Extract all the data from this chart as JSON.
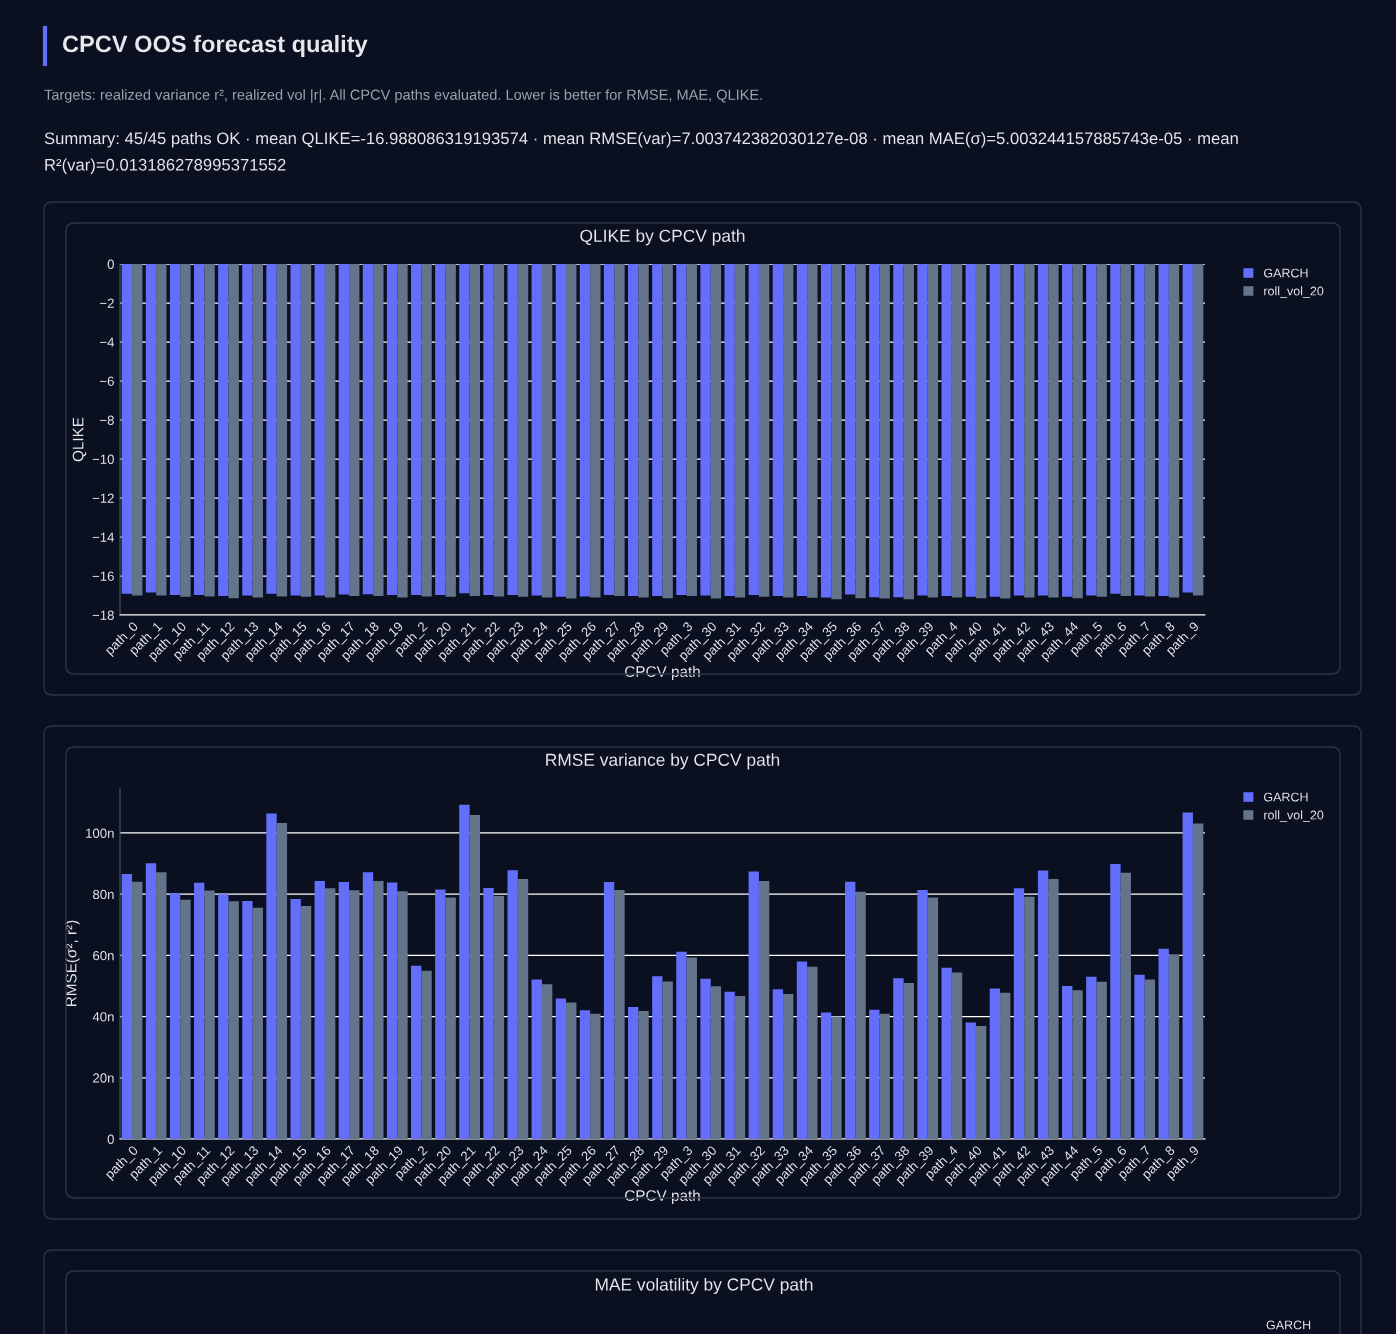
{
  "chart_data": [
    {
      "type": "other",
      "title": "CPCV OOS forecast quality",
      "annotations": [
        "Targets: realized variance r², realized vol |r|. All CPCV paths evaluated. Lower is better for RMSE, MAE, QLIKE.",
        "Summary: 45/45 paths OK · mean QLIKE=-16.988086319193574 · mean RMSE(var)=7.003742382030127e-08 · mean MAE(σ)=5.003244157885743e-05 · mean R²(var)=0.013186278995371552"
      ]
    },
    {
      "type": "bar",
      "title": "QLIKE by CPCV path",
      "xlabel": "CPCV path",
      "ylabel": "QLIKE",
      "grid": "y",
      "legend": "top right",
      "categories": [
        "path_0",
        "path_1",
        "path_10",
        "path_11",
        "path_12",
        "path_13",
        "path_14",
        "path_15",
        "path_16",
        "path_17",
        "path_18",
        "path_19",
        "path_2",
        "path_20",
        "path_21",
        "path_22",
        "path_23",
        "path_24",
        "path_25",
        "path_26",
        "path_27",
        "path_28",
        "path_29",
        "path_3",
        "path_30",
        "path_31",
        "path_32",
        "path_33",
        "path_34",
        "path_35",
        "path_36",
        "path_37",
        "path_38",
        "path_39",
        "path_4",
        "path_40",
        "path_41",
        "path_42",
        "path_43",
        "path_44",
        "path_5",
        "path_6",
        "path_7",
        "path_8",
        "path_9"
      ],
      "ylim": [
        -18,
        0
      ],
      "yticks": [
        0,
        {
          "value": -2,
          "label": "−2"
        },
        {
          "value": -4,
          "label": "−4"
        },
        {
          "value": -6,
          "label": "−6"
        },
        {
          "value": -8,
          "label": "−8"
        },
        {
          "value": -10,
          "label": "−10"
        },
        {
          "value": -12,
          "label": "−12"
        },
        {
          "value": -14,
          "label": "−14"
        },
        {
          "value": -16,
          "label": "−16"
        },
        {
          "value": -18,
          "label": "−18"
        }
      ],
      "series": [
        {
          "name": "GARCH",
          "color": "#636efa",
          "values": [
            -16.91,
            -16.84,
            -16.97,
            -16.97,
            -17.02,
            -17.0,
            -16.91,
            -17.0,
            -17.0,
            -16.95,
            -16.93,
            -16.97,
            -16.97,
            -16.97,
            -16.88,
            -16.97,
            -16.97,
            -17.0,
            -17.07,
            -17.05,
            -16.97,
            -17.03,
            -17.03,
            -16.97,
            -17.0,
            -17.03,
            -16.97,
            -17.02,
            -17.03,
            -17.1,
            -16.95,
            -17.09,
            -17.09,
            -17.0,
            -17.03,
            -17.07,
            -17.07,
            -17.0,
            -17.0,
            -17.07,
            -17.0,
            -16.91,
            -17.0,
            -17.02,
            -16.84
          ]
        },
        {
          "name": "roll_vol_20",
          "color": "#64748b",
          "values": [
            -17.0,
            -17.0,
            -17.07,
            -17.05,
            -17.14,
            -17.1,
            -17.05,
            -17.07,
            -17.1,
            -17.03,
            -17.03,
            -17.1,
            -17.05,
            -17.07,
            -17.02,
            -17.05,
            -17.07,
            -17.1,
            -17.16,
            -17.1,
            -17.03,
            -17.1,
            -17.14,
            -17.03,
            -17.16,
            -17.1,
            -17.07,
            -17.1,
            -17.12,
            -17.19,
            -17.14,
            -17.16,
            -17.19,
            -17.1,
            -17.1,
            -17.14,
            -17.16,
            -17.1,
            -17.1,
            -17.14,
            -17.07,
            -17.03,
            -17.05,
            -17.1,
            -17.0
          ]
        }
      ]
    },
    {
      "type": "bar",
      "title": "RMSE variance by CPCV path",
      "xlabel": "CPCV path",
      "ylabel": "RMSE(σ², r²)",
      "grid": "y",
      "legend": "top right",
      "categories": [
        "path_0",
        "path_1",
        "path_10",
        "path_11",
        "path_12",
        "path_13",
        "path_14",
        "path_15",
        "path_16",
        "path_17",
        "path_18",
        "path_19",
        "path_2",
        "path_20",
        "path_21",
        "path_22",
        "path_23",
        "path_24",
        "path_25",
        "path_26",
        "path_27",
        "path_28",
        "path_29",
        "path_3",
        "path_30",
        "path_31",
        "path_32",
        "path_33",
        "path_34",
        "path_35",
        "path_36",
        "path_37",
        "path_38",
        "path_39",
        "path_4",
        "path_40",
        "path_41",
        "path_42",
        "path_43",
        "path_44",
        "path_5",
        "path_6",
        "path_7",
        "path_8",
        "path_9"
      ],
      "ylim": [
        0,
        114.7
      ],
      "yticks": [
        0,
        {
          "value": 20,
          "label": "20n"
        },
        {
          "value": 40,
          "label": "40n"
        },
        {
          "value": 60,
          "label": "60n"
        },
        {
          "value": 80,
          "label": "80n"
        },
        {
          "value": 100,
          "label": "100n"
        }
      ],
      "series": [
        {
          "name": "GARCH",
          "color": "#636efa",
          "values": [
            86.6,
            90.1,
            80.3,
            83.7,
            80.0,
            77.8,
            106.4,
            78.4,
            84.3,
            84.0,
            87.2,
            83.8,
            56.6,
            81.5,
            109.2,
            82.0,
            87.8,
            52.1,
            45.9,
            42.1,
            84.0,
            43.1,
            53.2,
            61.2,
            52.4,
            48.1,
            87.4,
            48.9,
            58.0,
            41.3,
            84.1,
            42.2,
            52.5,
            81.4,
            56.0,
            38.1,
            49.2,
            81.9,
            87.7,
            50.0,
            53.0,
            89.9,
            53.7,
            62.2,
            106.7
          ]
        },
        {
          "name": "roll_vol_20",
          "color": "#64748b",
          "values": [
            84.1,
            87.2,
            78.2,
            81.2,
            77.7,
            75.6,
            103.3,
            76.1,
            81.9,
            81.3,
            84.3,
            81.0,
            55.0,
            78.9,
            105.9,
            79.4,
            85.0,
            50.6,
            44.6,
            40.9,
            81.4,
            41.8,
            51.5,
            59.3,
            49.9,
            46.7,
            84.3,
            47.4,
            56.3,
            40.0,
            80.8,
            40.9,
            51.0,
            78.9,
            54.4,
            36.9,
            47.8,
            79.2,
            85.0,
            48.6,
            51.4,
            87.0,
            52.1,
            60.2,
            103.1
          ]
        }
      ]
    },
    {
      "type": "other",
      "title": "MAE volatility by CPCV path",
      "annotations": [
        "GARCH"
      ]
    }
  ]
}
